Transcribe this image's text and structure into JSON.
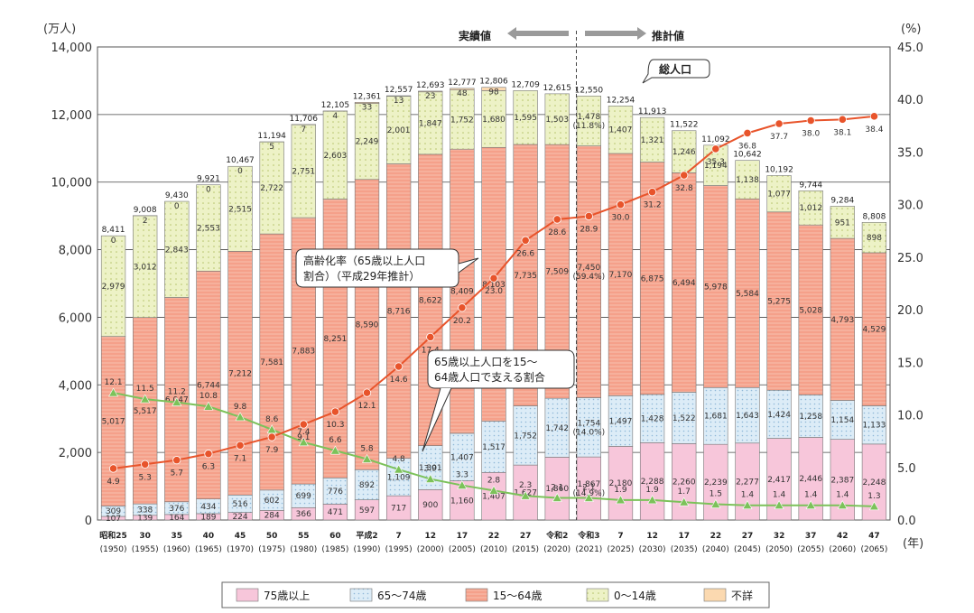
{
  "chart_data": {
    "type": "bar",
    "stacked": true,
    "yunit_left": "(万人)",
    "yunit_right": "(%)",
    "xunit": "(年)",
    "ylim_left": [
      0,
      14000
    ],
    "ylim_right": [
      0,
      45
    ],
    "yticks_left": [
      "0",
      "2,000",
      "4,000",
      "6,000",
      "8,000",
      "10,000",
      "12,000",
      "14,000"
    ],
    "yticks_right": [
      "0.0",
      "5.0",
      "10.0",
      "15.0",
      "20.0",
      "25.0",
      "30.0",
      "35.0",
      "40.0",
      "45.0"
    ],
    "categories": [
      {
        "era": "昭和25",
        "year": "(1950)"
      },
      {
        "era": "30",
        "year": "(1955)"
      },
      {
        "era": "35",
        "year": "(1960)"
      },
      {
        "era": "40",
        "year": "(1965)"
      },
      {
        "era": "45",
        "year": "(1970)"
      },
      {
        "era": "50",
        "year": "(1975)"
      },
      {
        "era": "55",
        "year": "(1980)"
      },
      {
        "era": "60",
        "year": "(1985)"
      },
      {
        "era": "平成2",
        "year": "(1990)"
      },
      {
        "era": "7",
        "year": "(1995)"
      },
      {
        "era": "12",
        "year": "(2000)"
      },
      {
        "era": "17",
        "year": "(2005)"
      },
      {
        "era": "22",
        "year": "(2010)"
      },
      {
        "era": "27",
        "year": "(2015)"
      },
      {
        "era": "令和2",
        "year": "(2020)"
      },
      {
        "era": "令和3",
        "year": "(2021)"
      },
      {
        "era": "7",
        "year": "(2025)"
      },
      {
        "era": "12",
        "year": "(2030)"
      },
      {
        "era": "17",
        "year": "(2035)"
      },
      {
        "era": "22",
        "year": "(2040)"
      },
      {
        "era": "27",
        "year": "(2045)"
      },
      {
        "era": "32",
        "year": "(2050)"
      },
      {
        "era": "37",
        "year": "(2055)"
      },
      {
        "era": "42",
        "year": "(2060)"
      },
      {
        "era": "47",
        "year": "(2065)"
      }
    ],
    "series": [
      {
        "name": "75歳以上",
        "color": "#f7c6da",
        "values": [
          107,
          139,
          164,
          189,
          224,
          284,
          366,
          471,
          597,
          717,
          900,
          1160,
          1407,
          1627,
          1860,
          1867,
          2180,
          2288,
          2260,
          2239,
          2277,
          2417,
          2446,
          2387,
          2248
        ],
        "labels": [
          "107",
          "139",
          "164",
          "189",
          "224",
          "284",
          "366",
          "471",
          "597",
          "717",
          "900",
          "1,160",
          "1,407",
          "1,627",
          "1,860",
          "1,867\n(14.9%)",
          "2,180",
          "2,288",
          "2,260",
          "2,239",
          "2,277",
          "2,417",
          "2,446",
          "2,387",
          "2,248"
        ]
      },
      {
        "name": "65〜74歳",
        "color": "#d4e8f5",
        "values": [
          309,
          338,
          376,
          434,
          516,
          602,
          699,
          776,
          892,
          1109,
          1301,
          1407,
          1517,
          1752,
          1742,
          1754,
          1497,
          1428,
          1522,
          1681,
          1643,
          1424,
          1258,
          1154,
          1133
        ],
        "labels": [
          "309",
          "338",
          "376",
          "434",
          "516",
          "602",
          "699",
          "776",
          "892",
          "1,109",
          "1,301",
          "1,407",
          "1,517",
          "1,752",
          "1,742",
          "1,754\n(14.0%)",
          "1,497",
          "1,428",
          "1,522",
          "1,681",
          "1,643",
          "1,424",
          "1,258",
          "1,154",
          "1,133"
        ]
      },
      {
        "name": "15〜64歳",
        "color": "#f5a08a",
        "values": [
          5017,
          5517,
          6047,
          6744,
          7212,
          7581,
          7883,
          8251,
          8590,
          8716,
          8622,
          8409,
          8103,
          7735,
          7509,
          7450,
          7170,
          6875,
          6494,
          5978,
          5584,
          5275,
          5028,
          4793,
          4529
        ],
        "labels": [
          "5,017",
          "5,517",
          "6,047",
          "6,744",
          "7,212",
          "7,581",
          "7,883",
          "8,251",
          "8,590",
          "8,716",
          "8,622",
          "8,409",
          "8,103",
          "7,735",
          "7,509",
          "7,450\n(59.4%)",
          "7,170",
          "6,875",
          "6,494",
          "5,978",
          "5,584",
          "5,275",
          "5,028",
          "4,793",
          "4,529"
        ]
      },
      {
        "name": "0〜14歳",
        "color": "#e9efbe",
        "values": [
          2979,
          3012,
          2843,
          2553,
          2515,
          2722,
          2751,
          2603,
          2249,
          2001,
          1847,
          1752,
          1680,
          1595,
          1503,
          1478,
          1407,
          1321,
          1246,
          1194,
          1138,
          1077,
          1012,
          951,
          898
        ],
        "labels": [
          "2,979",
          "3,012",
          "2,843",
          "2,553",
          "2,515",
          "2,722",
          "2,751",
          "2,603",
          "2,249",
          "2,001",
          "1,847",
          "1,752",
          "1,680",
          "1,595",
          "1,503",
          "1,478\n(11.8%)",
          "1,407",
          "1,321",
          "1,246",
          "1,194",
          "1,138",
          "1,077",
          "1,012",
          "951",
          "898"
        ]
      },
      {
        "name": "不詳",
        "color": "#fbd9b0",
        "values": [
          0,
          2,
          0,
          0,
          0,
          5,
          7,
          4,
          33,
          13,
          23,
          48,
          98,
          0,
          0,
          0,
          0,
          0,
          0,
          0,
          0,
          0,
          0,
          0,
          0
        ],
        "labels": [
          "0",
          "2",
          "0",
          "0",
          "0",
          "5",
          "7",
          "4",
          "33",
          "13",
          "23",
          "48",
          "98",
          "",
          "",
          "",
          "",
          "",
          "",
          "",
          "",
          "",
          "",
          "",
          ""
        ]
      }
    ],
    "totals": [
      "8,411",
      "9,008",
      "9,430",
      "9,921",
      "10,467",
      "11,194",
      "11,706",
      "12,105",
      "12,361",
      "12,557",
      "12,693",
      "12,777",
      "12,806",
      "12,709",
      "12,615",
      "12,550",
      "12,254",
      "11,913",
      "11,522",
      "11,092",
      "10,642",
      "10,192",
      "9,744",
      "9,284",
      "8,808"
    ],
    "aging_rate": {
      "name": "高齢化率（65歳以上人口割合）（平成29年推計）",
      "color": "#e8542b",
      "values": [
        4.9,
        5.3,
        5.7,
        6.3,
        7.1,
        7.9,
        9.1,
        10.3,
        12.1,
        14.6,
        17.4,
        20.2,
        23.0,
        26.6,
        28.6,
        28.9,
        30.0,
        31.2,
        32.8,
        35.3,
        36.8,
        37.7,
        38.0,
        38.1,
        38.4
      ],
      "labels": [
        "4.9",
        "5.3",
        "5.7",
        "6.3",
        "7.1",
        "7.9",
        "9.1",
        "10.3",
        "12.1",
        "14.6",
        "17.4",
        "20.2",
        "23.0",
        "26.6",
        "28.6",
        "28.9",
        "30.0",
        "31.2",
        "32.8",
        "35.3",
        "36.8",
        "37.7",
        "38.0",
        "38.1",
        "38.4"
      ]
    },
    "support_ratio": {
      "name": "65歳以上人口を15〜64歳人口で支える割合",
      "color": "#7cc25a",
      "values": [
        12.1,
        11.5,
        11.2,
        10.8,
        9.8,
        8.6,
        7.4,
        6.6,
        5.8,
        4.8,
        3.9,
        3.3,
        2.8,
        2.3,
        2.1,
        2.1,
        1.9,
        1.9,
        1.7,
        1.5,
        1.4,
        1.4,
        1.4,
        1.4,
        1.3
      ],
      "labels": [
        "12.1",
        "11.5",
        "11.2",
        "10.8",
        "9.8",
        "8.6",
        "7.4",
        "6.6",
        "5.8",
        "4.8",
        "3.9",
        "3.3",
        "2.8",
        "2.3",
        "2.1",
        "2.1",
        "1.9",
        "1.9",
        "1.7",
        "1.5",
        "1.4",
        "1.4",
        "1.4",
        "1.4",
        "1.3"
      ]
    },
    "annotations": {
      "actual": "実績値",
      "projected": "推計値",
      "total_population": "総人口",
      "aging_rate_line1": "高齢化率（65歳以上人口",
      "aging_rate_line2": "割合）（平成29年推計）",
      "support_line1": "65歳以上人口を15〜",
      "support_line2": "64歳人口で支える割合"
    },
    "legend": [
      "75歳以上",
      "65〜74歳",
      "15〜64歳",
      "0〜14歳",
      "不詳"
    ]
  }
}
